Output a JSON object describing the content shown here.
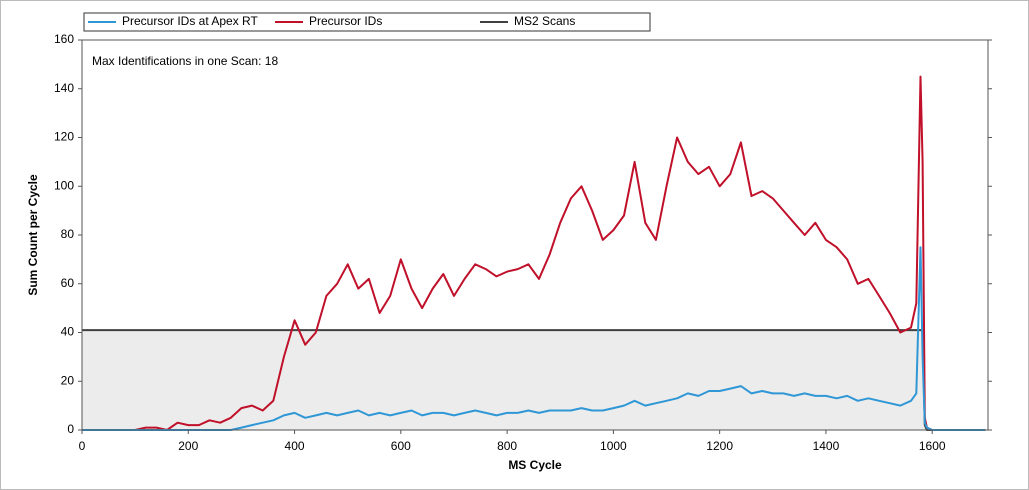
{
  "chart_data": {
    "type": "line",
    "annotation": "Max Identifications in one Scan: 18",
    "xlabel": "MS Cycle",
    "ylabel": "Sum Count per Cycle",
    "x": [
      0,
      20,
      40,
      60,
      80,
      100,
      120,
      140,
      160,
      180,
      200,
      220,
      240,
      260,
      280,
      300,
      320,
      340,
      360,
      380,
      400,
      420,
      440,
      460,
      480,
      500,
      520,
      540,
      560,
      580,
      600,
      620,
      640,
      660,
      680,
      700,
      720,
      740,
      760,
      780,
      800,
      820,
      840,
      860,
      880,
      900,
      920,
      940,
      960,
      980,
      1000,
      1020,
      1040,
      1060,
      1080,
      1100,
      1120,
      1140,
      1160,
      1180,
      1200,
      1220,
      1240,
      1260,
      1280,
      1300,
      1320,
      1340,
      1360,
      1380,
      1400,
      1420,
      1440,
      1460,
      1480,
      1500,
      1520,
      1540,
      1560,
      1570,
      1578,
      1582,
      1586,
      1590,
      1600,
      1620,
      1640,
      1660,
      1680,
      1700
    ],
    "series": [
      {
        "name": "MS2 Scans",
        "color": "#404040",
        "fill": "#ececec",
        "values": [
          41,
          41,
          41,
          41,
          41,
          41,
          41,
          41,
          41,
          41,
          41,
          41,
          41,
          41,
          41,
          41,
          41,
          41,
          41,
          41,
          41,
          41,
          41,
          41,
          41,
          41,
          41,
          41,
          41,
          41,
          41,
          41,
          41,
          41,
          41,
          41,
          41,
          41,
          41,
          41,
          41,
          41,
          41,
          41,
          41,
          41,
          41,
          41,
          41,
          41,
          41,
          41,
          41,
          41,
          41,
          41,
          41,
          41,
          41,
          41,
          41,
          41,
          41,
          41,
          41,
          41,
          41,
          41,
          41,
          41,
          41,
          41,
          41,
          41,
          41,
          41,
          41,
          41,
          41,
          41,
          41,
          41,
          2,
          0,
          0,
          0,
          0,
          0,
          0,
          0
        ]
      },
      {
        "name": "Precursor IDs",
        "color": "#c0102a",
        "values": [
          0,
          0,
          0,
          0,
          0,
          0,
          1,
          1,
          0,
          3,
          2,
          2,
          4,
          3,
          5,
          9,
          10,
          8,
          12,
          30,
          45,
          35,
          40,
          55,
          60,
          68,
          58,
          62,
          48,
          55,
          70,
          58,
          50,
          58,
          64,
          55,
          62,
          68,
          66,
          63,
          65,
          66,
          68,
          62,
          72,
          85,
          95,
          100,
          90,
          78,
          82,
          88,
          110,
          85,
          78,
          100,
          120,
          110,
          105,
          108,
          100,
          105,
          118,
          96,
          98,
          95,
          90,
          85,
          80,
          85,
          78,
          75,
          70,
          60,
          62,
          55,
          48,
          40,
          42,
          52,
          145,
          110,
          5,
          1,
          0,
          0,
          0,
          0,
          0,
          0
        ]
      },
      {
        "name": "Precursor IDs at Apex RT",
        "color": "#2f97d6",
        "values": [
          0,
          0,
          0,
          0,
          0,
          0,
          0,
          0,
          0,
          0,
          0,
          0,
          0,
          0,
          0,
          1,
          2,
          3,
          4,
          6,
          7,
          5,
          6,
          7,
          6,
          7,
          8,
          6,
          7,
          6,
          7,
          8,
          6,
          7,
          7,
          6,
          7,
          8,
          7,
          6,
          7,
          7,
          8,
          7,
          8,
          8,
          8,
          9,
          8,
          8,
          9,
          10,
          12,
          10,
          11,
          12,
          13,
          15,
          14,
          16,
          16,
          17,
          18,
          15,
          16,
          15,
          15,
          14,
          15,
          14,
          14,
          13,
          14,
          12,
          13,
          12,
          11,
          10,
          12,
          15,
          75,
          30,
          3,
          1,
          0,
          0,
          0,
          0,
          0,
          0
        ]
      }
    ],
    "legend_order": [
      2,
      1,
      0
    ],
    "xlim": [
      0,
      1705
    ],
    "xticks": [
      0,
      200,
      400,
      600,
      800,
      1000,
      1200,
      1400,
      1600
    ],
    "ylim": [
      0,
      160
    ],
    "yticks": [
      0,
      20,
      40,
      60,
      80,
      100,
      120,
      140,
      160
    ]
  }
}
